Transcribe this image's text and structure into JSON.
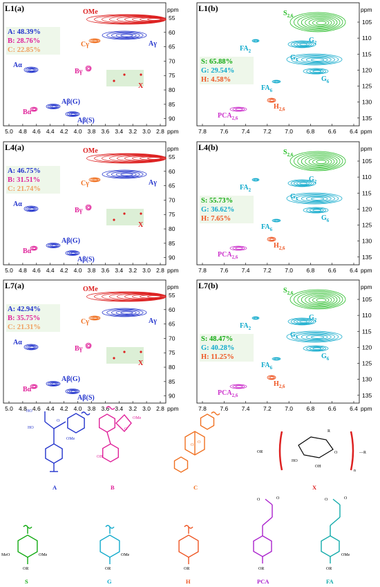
{
  "panels": [
    {
      "title": "L1(a)",
      "side": "a",
      "xticks": [
        "5.0",
        "4.8",
        "4.6",
        "4.4",
        "4.2",
        "4.0",
        "3.8",
        "3.6",
        "3.4",
        "3.2",
        "3.0",
        "2.8"
      ],
      "yticks": [
        "55",
        "60",
        "65",
        "70",
        "75",
        "80",
        "85",
        "90"
      ],
      "unit": "ppm",
      "stats": [
        {
          "text": "A: 48.39%",
          "color": "#2233cc"
        },
        {
          "text": "B: 28.76%",
          "color": "#e0229a"
        },
        {
          "text": "C: 22.85%",
          "color": "#f0a060"
        }
      ]
    },
    {
      "title": "L1(b)",
      "side": "b",
      "xticks": [
        "7.8",
        "7.6",
        "7.4",
        "7.2",
        "7.0",
        "6.8",
        "6.6",
        "6.4"
      ],
      "yticks": [
        "105",
        "110",
        "115",
        "120",
        "125",
        "130",
        "135"
      ],
      "unit": "ppm",
      "stats": [
        {
          "text": "S: 65.88%",
          "color": "#11aa11"
        },
        {
          "text": "G: 29.54%",
          "color": "#11aacc"
        },
        {
          "text": "H: 4.58%",
          "color": "#ee5522"
        }
      ]
    },
    {
      "title": "L4(a)",
      "side": "a",
      "xticks": [
        "5.0",
        "4.8",
        "4.6",
        "4.4",
        "4.2",
        "4.0",
        "3.8",
        "3.6",
        "3.4",
        "3.2",
        "3.0",
        "2.8"
      ],
      "yticks": [
        "55",
        "60",
        "65",
        "70",
        "75",
        "80",
        "85",
        "90"
      ],
      "unit": "ppm",
      "stats": [
        {
          "text": "A: 46.75%",
          "color": "#2233cc"
        },
        {
          "text": "B: 31.51%",
          "color": "#e0229a"
        },
        {
          "text": "C: 21.74%",
          "color": "#f0a060"
        }
      ]
    },
    {
      "title": "L4(b)",
      "side": "b",
      "xticks": [
        "7.8",
        "7.6",
        "7.4",
        "7.2",
        "7.0",
        "6.8",
        "6.6",
        "6.4"
      ],
      "yticks": [
        "105",
        "110",
        "115",
        "120",
        "125",
        "130",
        "135"
      ],
      "unit": "ppm",
      "stats": [
        {
          "text": "S: 55.73%",
          "color": "#11aa11"
        },
        {
          "text": "G: 36.62%",
          "color": "#11aacc"
        },
        {
          "text": "H: 7.65%",
          "color": "#ee5522"
        }
      ]
    },
    {
      "title": "L7(a)",
      "side": "a",
      "xticks": [
        "5.0",
        "4.8",
        "4.6",
        "4.4",
        "4.2",
        "4.0",
        "3.8",
        "3.6",
        "3.4",
        "3.2",
        "3.0",
        "2.8"
      ],
      "yticks": [
        "55",
        "60",
        "65",
        "70",
        "75",
        "80",
        "85",
        "90"
      ],
      "unit": "ppm",
      "stats": [
        {
          "text": "A: 42.94%",
          "color": "#2233cc"
        },
        {
          "text": "B: 35.75%",
          "color": "#e0229a"
        },
        {
          "text": "C: 21.31%",
          "color": "#f0a060"
        }
      ]
    },
    {
      "title": "L7(b)",
      "side": "b",
      "xticks": [
        "7.8",
        "7.6",
        "7.4",
        "7.2",
        "7.0",
        "6.8",
        "6.6",
        "6.4"
      ],
      "yticks": [
        "105",
        "110",
        "115",
        "120",
        "125",
        "130",
        "135"
      ],
      "unit": "ppm",
      "stats": [
        {
          "text": "S: 48.47%",
          "color": "#11aa11"
        },
        {
          "text": "G: 40.28%",
          "color": "#11aacc"
        },
        {
          "text": "H: 11.25%",
          "color": "#ee5522"
        }
      ]
    }
  ],
  "peak_labels_a": {
    "OMe": "OMe",
    "Agamma": "Aγ",
    "Cgamma": "Cγ",
    "Aalpha": "Aα",
    "Bgamma": "Bγ",
    "X": "X",
    "AbetaG": "Aβ(G)",
    "AbetaS": "Aβ(S)",
    "Balpha": "Bα"
  },
  "peak_labels_b": {
    "S26": "S",
    "S26sub": "2,6",
    "G2": "G",
    "G2sub": "2",
    "FA2": "FA",
    "FA2sub": "2",
    "G5": "G",
    "G5sub": "5",
    "G6": "G",
    "G6sub": "6",
    "FA6": "FA",
    "FA6sub": "6",
    "H26": "H",
    "H26sub": "2,6",
    "PCA": "PCA",
    "PCAsub": "2,6"
  },
  "structures": [
    {
      "name": "A",
      "color": "#2233cc"
    },
    {
      "name": "B",
      "color": "#e0229a"
    },
    {
      "name": "C",
      "color": "#f07020"
    },
    {
      "name": "X",
      "color": "#dd2222"
    },
    {
      "name": "S",
      "color": "#11aa11"
    },
    {
      "name": "G",
      "color": "#11aacc"
    },
    {
      "name": "H",
      "color": "#ee5522"
    },
    {
      "name": "PCA",
      "color": "#aa22cc"
    },
    {
      "name": "FA",
      "color": "#11aaaa"
    }
  ],
  "structure_text": {
    "OMe": "OMe",
    "MeO": "MeO",
    "OR": "OR",
    "OH": "OH",
    "HO": "HO",
    "R": "R",
    "n": "n",
    "O": "O"
  }
}
